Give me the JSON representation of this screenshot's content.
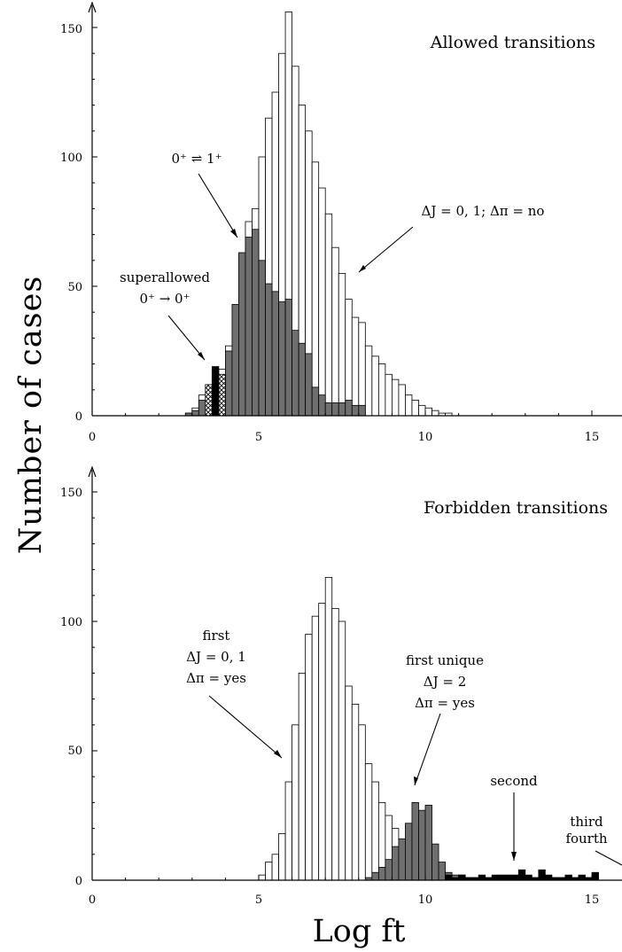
{
  "figure": {
    "ylabel": "Number of cases",
    "xlabel": "Log ft"
  },
  "chart_data": [
    {
      "type": "bar",
      "title": "Allowed transitions",
      "xlabel": "Log ft",
      "ylabel": "Number of cases",
      "xlim": [
        0,
        16
      ],
      "ylim": [
        0,
        155
      ],
      "bin_width": 0.2,
      "x_ticks": [
        "0",
        "5",
        "10",
        "15"
      ],
      "y_ticks": [
        "0",
        "50",
        "100",
        "150"
      ],
      "grid": false,
      "legend": "none",
      "x": [
        2.8,
        3.0,
        3.2,
        3.4,
        3.6,
        3.8,
        4.0,
        4.2,
        4.4,
        4.6,
        4.8,
        5.0,
        5.2,
        5.4,
        5.6,
        5.8,
        6.0,
        6.2,
        6.4,
        6.6,
        6.8,
        7.0,
        7.2,
        7.4,
        7.6,
        7.8,
        8.0,
        8.2,
        8.4,
        8.6,
        8.8,
        9.0,
        9.2,
        9.4,
        9.6,
        9.8,
        10.0,
        10.2,
        10.4,
        10.6
      ],
      "series": [
        {
          "name": "",
          "style": "open",
          "values": [
            1,
            3,
            8,
            12,
            15,
            18,
            27,
            40,
            62,
            75,
            80,
            100,
            115,
            125,
            140,
            156,
            135,
            120,
            110,
            98,
            88,
            78,
            65,
            55,
            45,
            38,
            36,
            27,
            23,
            20,
            16,
            14,
            12,
            8,
            6,
            4,
            3,
            2,
            1,
            1
          ]
        },
        {
          "name": "",
          "style": "gray",
          "values": [
            1,
            2,
            6,
            0,
            0,
            0,
            25,
            43,
            63,
            69,
            72,
            60,
            51,
            48,
            44,
            45,
            33,
            28,
            24,
            11,
            8,
            5,
            5,
            5,
            6,
            4,
            4,
            0,
            0,
            0,
            0,
            0,
            0,
            0,
            0,
            0,
            0,
            0,
            0,
            0
          ]
        },
        {
          "name": "",
          "style": "hatched",
          "values": [
            0,
            0,
            0,
            12,
            12,
            16,
            0,
            0,
            0,
            0,
            0,
            0,
            0,
            0,
            0,
            0,
            0,
            0,
            0,
            0,
            0,
            0,
            0,
            0,
            0,
            0,
            0,
            0,
            0,
            0,
            0,
            0,
            0,
            0,
            0,
            0,
            0,
            0,
            0,
            0
          ]
        },
        {
          "name": "",
          "style": "black",
          "values": [
            0,
            0,
            0,
            0,
            19,
            0,
            0,
            0,
            0,
            0,
            0,
            0,
            0,
            0,
            0,
            0,
            0,
            0,
            0,
            0,
            0,
            0,
            0,
            0,
            0,
            0,
            0,
            0,
            0,
            0,
            0,
            0,
            0,
            0,
            0,
            0,
            0,
            0,
            0,
            0
          ]
        }
      ],
      "annotations": [
        {
          "lines": [
            "0⁺ ⇌ 1⁺"
          ]
        },
        {
          "lines": [
            "ΔJ = 0, 1; Δπ = no"
          ]
        },
        {
          "lines": [
            "superallowed",
            "0⁺ → 0⁺"
          ]
        }
      ]
    },
    {
      "type": "bar",
      "title": "Forbidden transitions",
      "xlabel": "Log ft",
      "ylabel": "Number of cases",
      "xlim": [
        0,
        16
      ],
      "ylim": [
        0,
        155
      ],
      "bin_width": 0.2,
      "x_ticks": [
        "0",
        "5",
        "10",
        "15"
      ],
      "y_ticks": [
        "0",
        "50",
        "100",
        "150"
      ],
      "grid": false,
      "legend": "none",
      "x": [
        5.0,
        5.2,
        5.4,
        5.6,
        5.8,
        6.0,
        6.2,
        6.4,
        6.6,
        6.8,
        7.0,
        7.2,
        7.4,
        7.6,
        7.8,
        8.0,
        8.2,
        8.4,
        8.6,
        8.8,
        9.0,
        9.2,
        9.4,
        9.6,
        9.8,
        10.0,
        10.2,
        10.4,
        10.6,
        10.8,
        11.0,
        11.2,
        11.4,
        11.6,
        11.8,
        12.0,
        12.2,
        12.4,
        12.6,
        12.8,
        13.0,
        13.2,
        13.4,
        13.6,
        13.8,
        14.0,
        14.2,
        14.4,
        14.6,
        14.8,
        15.0
      ],
      "series": [
        {
          "name": "",
          "style": "open",
          "values": [
            2,
            7,
            10,
            18,
            38,
            60,
            80,
            95,
            102,
            107,
            117,
            105,
            100,
            75,
            68,
            60,
            45,
            38,
            30,
            25,
            20,
            13,
            10,
            8,
            6,
            5,
            3,
            2,
            2,
            1,
            2,
            1,
            1,
            1,
            1,
            1,
            1,
            1,
            1,
            1,
            1,
            1,
            1,
            1,
            1,
            1,
            1,
            1,
            1,
            1,
            1
          ]
        },
        {
          "name": "",
          "style": "gray",
          "values": [
            0,
            0,
            0,
            0,
            0,
            0,
            0,
            0,
            0,
            0,
            0,
            0,
            0,
            0,
            0,
            0,
            1,
            3,
            5,
            8,
            13,
            16,
            22,
            30,
            27,
            29,
            14,
            7,
            3,
            2,
            0,
            0,
            0,
            0,
            0,
            0,
            0,
            0,
            0,
            0,
            0,
            0,
            0,
            0,
            0,
            0,
            0,
            0,
            0,
            0,
            0
          ]
        },
        {
          "name": "",
          "style": "black",
          "values": [
            0,
            0,
            0,
            0,
            0,
            0,
            0,
            0,
            0,
            0,
            0,
            0,
            0,
            0,
            0,
            0,
            0,
            0,
            0,
            0,
            0,
            0,
            0,
            0,
            0,
            0,
            0,
            0,
            2,
            1,
            2,
            1,
            1,
            2,
            1,
            2,
            2,
            2,
            2,
            4,
            2,
            1,
            4,
            2,
            1,
            1,
            2,
            1,
            2,
            1,
            3
          ]
        }
      ],
      "annotations": [
        {
          "lines": [
            "first",
            "ΔJ = 0, 1",
            "Δπ = yes"
          ]
        },
        {
          "lines": [
            "first unique",
            "ΔJ = 2",
            "Δπ = yes"
          ]
        },
        {
          "lines": [
            "second"
          ]
        },
        {
          "lines": [
            "third",
            "fourth"
          ]
        }
      ]
    }
  ]
}
